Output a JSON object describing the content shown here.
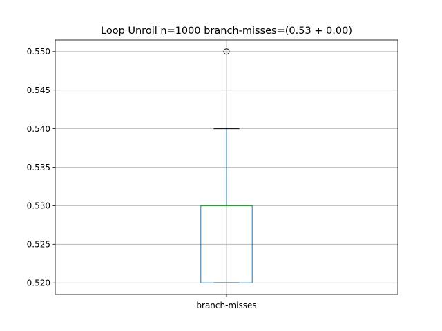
{
  "chart_data": {
    "type": "box",
    "title": "Loop Unroll n=1000  branch-misses=(0.53 + 0.00)",
    "xlabel": "",
    "ylabel": "",
    "categories": [
      "branch-misses"
    ],
    "ylim": [
      0.5185,
      0.5515
    ],
    "yticks": [
      0.52,
      0.525,
      0.53,
      0.535,
      0.54,
      0.545,
      0.55
    ],
    "ytick_labels": [
      "0.520",
      "0.525",
      "0.530",
      "0.535",
      "0.540",
      "0.545",
      "0.550"
    ],
    "grid": true,
    "boxes": [
      {
        "category": "branch-misses",
        "whisker_low": 0.52,
        "q1": 0.52,
        "median": 0.53,
        "q3": 0.53,
        "whisker_high": 0.54,
        "outliers": [
          0.55
        ]
      }
    ],
    "colors": {
      "box": "#1f77b4",
      "median": "#2ca02c",
      "whisker": "#1f77b4",
      "cap": "#000000",
      "grid": "#b0b0b0",
      "outlier": "#000000"
    }
  }
}
